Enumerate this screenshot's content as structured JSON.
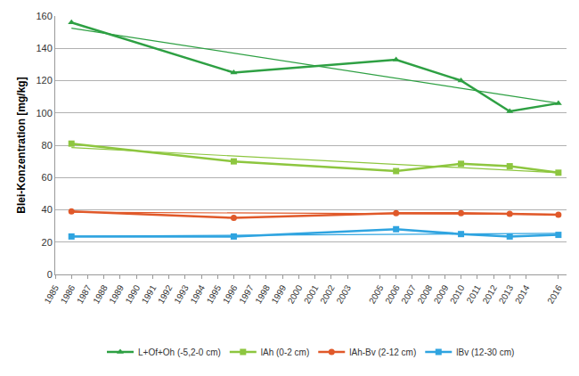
{
  "chart_data": {
    "type": "line",
    "y_label": "Blei-Konzentration [mg/kg]",
    "x": [
      1986,
      1996,
      2006,
      2010,
      2013,
      2016
    ],
    "series": [
      {
        "name": "L+Of+Oh (-5,2-0 cm)",
        "color": "#2ea043",
        "marker": "triangle",
        "values": [
          156,
          125,
          133,
          120,
          101,
          106
        ],
        "trend": [
          152.5,
          106
        ]
      },
      {
        "name": "lAh (0-2 cm)",
        "color": "#8dc63f",
        "marker": "square",
        "values": [
          81,
          70,
          64,
          68.5,
          67,
          63
        ],
        "trend": [
          78.5,
          63
        ]
      },
      {
        "name": "lAh-Bv (2-12 cm)",
        "color": "#e0592a",
        "marker": "circle",
        "values": [
          39,
          35,
          38,
          38,
          37.5,
          37
        ],
        "trend": [
          38.5,
          37.2
        ]
      },
      {
        "name": "lBv (12-30 cm)",
        "color": "#2fa4e0",
        "marker": "square",
        "values": [
          23.5,
          23.5,
          28,
          25,
          23.5,
          24.5
        ],
        "trend": [
          23.7,
          25.4
        ]
      }
    ],
    "xlim": [
      1985,
      2016.5
    ],
    "xticks": [
      1985,
      1986,
      1987,
      1988,
      1989,
      1990,
      1991,
      1992,
      1993,
      1994,
      1995,
      1996,
      1997,
      1998,
      1999,
      2000,
      2001,
      2002,
      2003,
      2005,
      2006,
      2007,
      2008,
      2009,
      2010,
      2011,
      2012,
      2013,
      2014,
      2016
    ],
    "ylim": [
      0,
      160
    ],
    "yticks": [
      0,
      20,
      40,
      60,
      80,
      100,
      120,
      140,
      160
    ],
    "grid": true,
    "legend": "bottom"
  }
}
